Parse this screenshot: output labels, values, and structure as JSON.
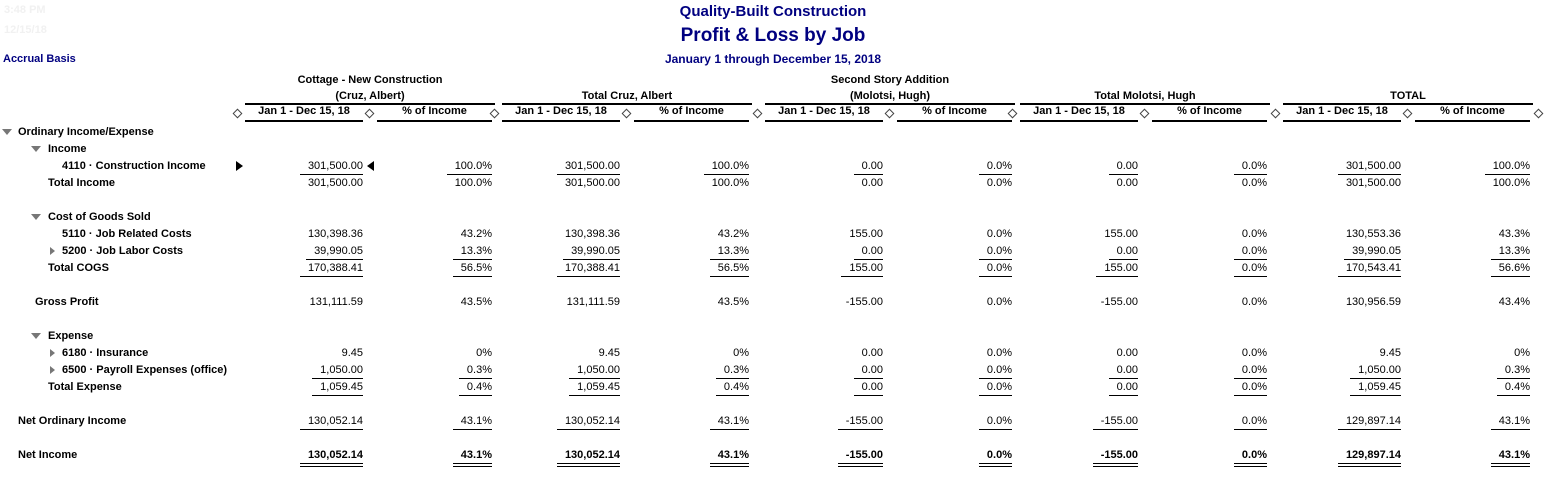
{
  "page": {
    "printed_time": "3:48 PM",
    "printed_date": "12/15/18",
    "basis_label": "Accrual Basis",
    "company_name": "Quality-Built Construction",
    "report_title": "Profit & Loss by Job",
    "report_period": "January 1 through December 15, 2018"
  },
  "colors": {
    "heading": "#000080",
    "body_text": "#000000",
    "faint_stamp": "#f1f1f1",
    "collapse_triangle": "#777777"
  },
  "table": {
    "column_groups": [
      {
        "line1": "Cottage - New Construction",
        "line2": "(Cruz, Albert)"
      },
      {
        "line1": "",
        "line2": "Total Cruz, Albert"
      },
      {
        "line1": "Second Story Addition",
        "line2": "(Molotsi, Hugh)"
      },
      {
        "line1": "",
        "line2": "Total Molotsi, Hugh"
      },
      {
        "line1": "",
        "line2": "TOTAL"
      }
    ],
    "sub_columns": [
      "Jan 1 - Dec 15, 18",
      "% of Income"
    ],
    "separator_icon": "column-resize-diamond-icon",
    "rows": [
      {
        "type": "section",
        "label": "Ordinary Income/Expense",
        "indent": 0,
        "collapse": "down"
      },
      {
        "type": "section",
        "label": "Income",
        "indent": 1,
        "collapse": "down"
      },
      {
        "type": "data",
        "label": "4110 · Construction Income",
        "indent": 2,
        "drill_marker": true,
        "underline": true,
        "values": [
          "301,500.00",
          "100.0%",
          "301,500.00",
          "100.0%",
          "0.00",
          "0.0%",
          "0.00",
          "0.0%",
          "301,500.00",
          "100.0%"
        ]
      },
      {
        "type": "data",
        "label": "Total Income",
        "indent": 1,
        "values": [
          "301,500.00",
          "100.0%",
          "301,500.00",
          "100.0%",
          "0.00",
          "0.0%",
          "0.00",
          "0.0%",
          "301,500.00",
          "100.0%"
        ]
      },
      {
        "type": "spacer"
      },
      {
        "type": "section",
        "label": "Cost of Goods Sold",
        "indent": 1,
        "collapse": "down"
      },
      {
        "type": "data",
        "label": "5110 · Job Related Costs",
        "indent": 2,
        "values": [
          "130,398.36",
          "43.2%",
          "130,398.36",
          "43.2%",
          "155.00",
          "0.0%",
          "155.00",
          "0.0%",
          "130,553.36",
          "43.3%"
        ]
      },
      {
        "type": "data",
        "label": "5200 · Job Labor Costs",
        "indent": 2,
        "collapse": "right",
        "underline": true,
        "values": [
          "39,990.05",
          "13.3%",
          "39,990.05",
          "13.3%",
          "0.00",
          "0.0%",
          "0.00",
          "0.0%",
          "39,990.05",
          "13.3%"
        ]
      },
      {
        "type": "data",
        "label": "Total COGS",
        "indent": 1,
        "underline": true,
        "values": [
          "170,388.41",
          "56.5%",
          "170,388.41",
          "56.5%",
          "155.00",
          "0.0%",
          "155.00",
          "0.0%",
          "170,543.41",
          "56.6%"
        ]
      },
      {
        "type": "spacer"
      },
      {
        "type": "data",
        "label": "Gross Profit",
        "indent": 0.5,
        "values": [
          "131,111.59",
          "43.5%",
          "131,111.59",
          "43.5%",
          "-155.00",
          "0.0%",
          "-155.00",
          "0.0%",
          "130,956.59",
          "43.4%"
        ]
      },
      {
        "type": "spacer"
      },
      {
        "type": "section",
        "label": "Expense",
        "indent": 1,
        "collapse": "down"
      },
      {
        "type": "data",
        "label": "6180 · Insurance",
        "indent": 2,
        "collapse": "right",
        "values": [
          "9.45",
          "0%",
          "9.45",
          "0%",
          "0.00",
          "0.0%",
          "0.00",
          "0.0%",
          "9.45",
          "0%"
        ]
      },
      {
        "type": "data",
        "label": "6500 · Payroll Expenses (office)",
        "indent": 2,
        "collapse": "right",
        "underline": true,
        "values": [
          "1,050.00",
          "0.3%",
          "1,050.00",
          "0.3%",
          "0.00",
          "0.0%",
          "0.00",
          "0.0%",
          "1,050.00",
          "0.3%"
        ]
      },
      {
        "type": "data",
        "label": "Total Expense",
        "indent": 1,
        "underline": true,
        "values": [
          "1,059.45",
          "0.4%",
          "1,059.45",
          "0.4%",
          "0.00",
          "0.0%",
          "0.00",
          "0.0%",
          "1,059.45",
          "0.4%"
        ]
      },
      {
        "type": "spacer"
      },
      {
        "type": "data",
        "label": "Net Ordinary Income",
        "indent": 0,
        "underline": true,
        "values": [
          "130,052.14",
          "43.1%",
          "130,052.14",
          "43.1%",
          "-155.00",
          "0.0%",
          "-155.00",
          "0.0%",
          "129,897.14",
          "43.1%"
        ]
      },
      {
        "type": "spacer"
      },
      {
        "type": "data",
        "label": "Net Income",
        "indent": 0,
        "bold_values": true,
        "double_underline": true,
        "values": [
          "130,052.14",
          "43.1%",
          "130,052.14",
          "43.1%",
          "-155.00",
          "0.0%",
          "-155.00",
          "0.0%",
          "129,897.14",
          "43.1%"
        ]
      }
    ]
  }
}
